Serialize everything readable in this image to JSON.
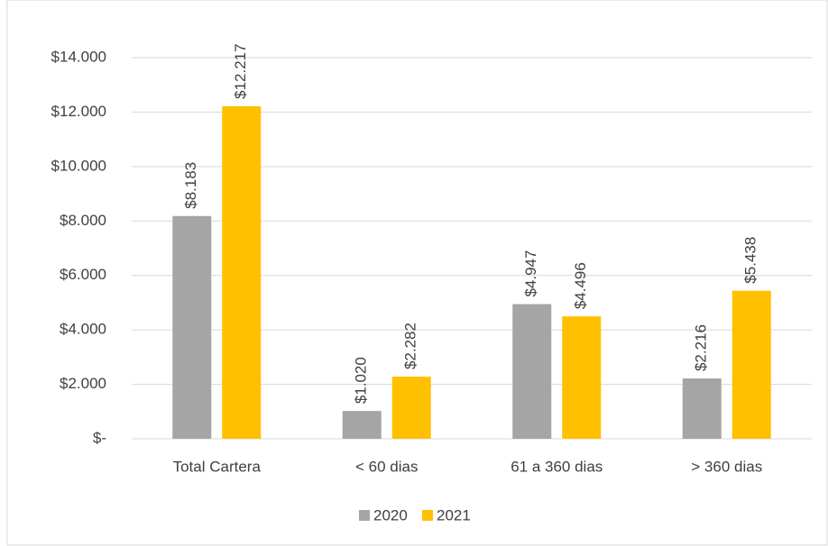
{
  "chart_data": {
    "type": "bar",
    "categories": [
      "Total Cartera",
      "< 60 dias",
      "61 a 360 dias",
      "> 360 dias"
    ],
    "series": [
      {
        "name": "2020",
        "color": "#a5a5a5",
        "values": [
          8183,
          1020,
          4947,
          2216
        ],
        "value_labels": [
          "$8.183",
          "$1.020",
          "$4.947",
          "$2.216"
        ]
      },
      {
        "name": "2021",
        "color": "#ffc000",
        "values": [
          12217,
          2282,
          4496,
          5438
        ],
        "value_labels": [
          "$12.217",
          "$2.282",
          "$4.496",
          "$5.438"
        ]
      }
    ],
    "ylim": [
      0,
      14000
    ],
    "yticks": [
      {
        "value": 0,
        "label": "$-"
      },
      {
        "value": 2000,
        "label": "$2.000"
      },
      {
        "value": 4000,
        "label": "$4.000"
      },
      {
        "value": 6000,
        "label": "$6.000"
      },
      {
        "value": 8000,
        "label": "$8.000"
      },
      {
        "value": 10000,
        "label": "$10.000"
      },
      {
        "value": 12000,
        "label": "$12.000"
      },
      {
        "value": 14000,
        "label": "$14.000"
      }
    ],
    "grid": true,
    "legend": "bottom"
  }
}
